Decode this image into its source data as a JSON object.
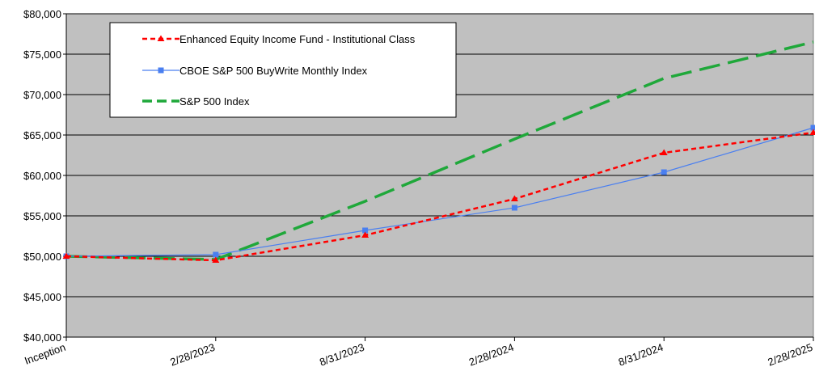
{
  "chart_data": {
    "type": "line",
    "categories": [
      "Inception",
      "2/28/2023",
      "8/31/2023",
      "2/28/2024",
      "8/31/2024",
      "2/28/2025"
    ],
    "ylim": [
      40000,
      80000
    ],
    "yticks": [
      40000,
      45000,
      50000,
      55000,
      60000,
      65000,
      70000,
      75000,
      80000
    ],
    "ytick_labels": [
      "$40,000",
      "$45,000",
      "$50,000",
      "$55,000",
      "$60,000",
      "$65,000",
      "$70,000",
      "$75,000",
      "$80,000"
    ],
    "grid": "horizontal",
    "plot_background": "#c0c0c0",
    "legend_position": "top-left",
    "series": [
      {
        "name": "Enhanced Equity Income Fund - Institutional Class",
        "color": "#ff0000",
        "style": "dashed",
        "marker": "triangle",
        "values": [
          50000,
          49500,
          52600,
          57100,
          62800,
          65300
        ]
      },
      {
        "name": "CBOE S&P 500 BuyWrite Monthly Index",
        "color": "#4a7ff0",
        "style": "solid",
        "marker": "square",
        "values": [
          50000,
          50200,
          53200,
          56000,
          60400,
          65900
        ]
      },
      {
        "name": "S&P 500 Index",
        "color": "#1fa83a",
        "style": "long-dash",
        "marker": "none",
        "values": [
          50000,
          49600,
          56800,
          64500,
          72000,
          76500
        ]
      }
    ]
  }
}
